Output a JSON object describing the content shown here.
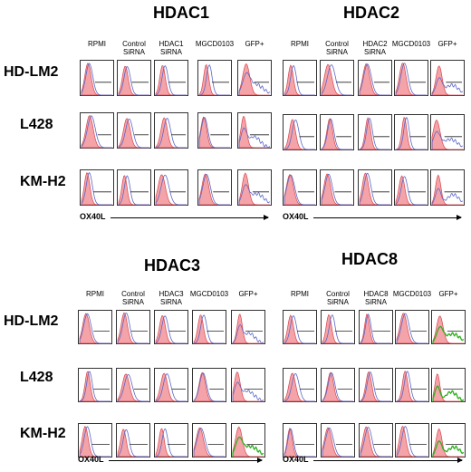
{
  "row_labels": [
    "HD-LM2",
    "L428",
    "KM-H2"
  ],
  "axis_label": "OX40L",
  "colors": {
    "fill": "#f4a3a8",
    "fill_edge": "#d9484f",
    "blue": "#5b67c7",
    "green": "#2db01f",
    "frame": "#000000"
  },
  "panels": [
    {
      "title": "HDAC1",
      "columns": [
        "RPMI",
        "Control\nSiRNA",
        "HDAC1\nSiRNA",
        "MGCD0103",
        "GFP+"
      ]
    },
    {
      "title": "HDAC2",
      "columns": [
        "RPMI",
        "Control\nSiRNA",
        "HDAC2\nSiRNA",
        "MGCD0103",
        "GFP+"
      ]
    },
    {
      "title": "HDAC3",
      "columns": [
        "RPMI",
        "Control\nSiRNA",
        "HDAC3\nSiRNA",
        "MGCD0103",
        "GFP+"
      ]
    },
    {
      "title": "HDAC8",
      "columns": [
        "RPMI",
        "Control\nSiRNA",
        "HDAC8\nSiRNA",
        "MGCD0103",
        "GFP+"
      ]
    }
  ]
}
